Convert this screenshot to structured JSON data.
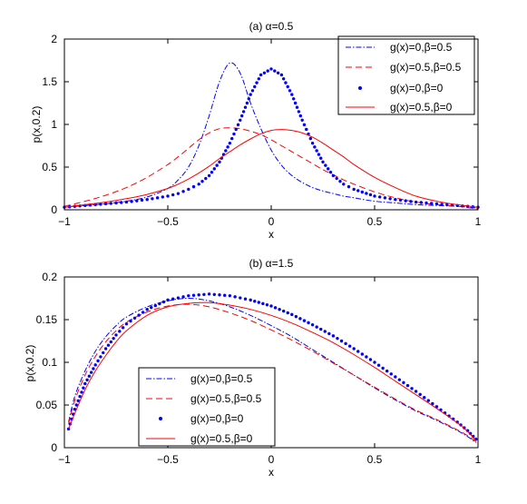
{
  "figure": {
    "background": "#ffffff"
  },
  "chart_data": [
    {
      "type": "line",
      "title": "(a) α=0.5",
      "xlabel": "x",
      "ylabel": "p(x,0.2)",
      "xlim": [
        -1,
        1
      ],
      "ylim": [
        0,
        2
      ],
      "xticks": [
        -1,
        -0.5,
        0,
        0.5,
        1
      ],
      "xtick_labels": [
        "−1",
        "−0.5",
        "0",
        "0.5",
        "1"
      ],
      "yticks": [
        0,
        0.5,
        1,
        1.5,
        2
      ],
      "ytick_labels": [
        "0",
        "0.5",
        "1",
        "1.5",
        "2"
      ],
      "grid": false,
      "legend_position": "top-right",
      "x": [
        -1,
        -0.9,
        -0.8,
        -0.7,
        -0.6,
        -0.5,
        -0.45,
        -0.4,
        -0.35,
        -0.3,
        -0.25,
        -0.2,
        -0.15,
        -0.1,
        -0.05,
        0,
        0.05,
        0.1,
        0.15,
        0.2,
        0.25,
        0.3,
        0.35,
        0.4,
        0.5,
        0.6,
        0.7,
        0.8,
        0.9,
        1
      ],
      "series": [
        {
          "name": "g(x)=0,β=0.5",
          "style": "dashdot",
          "color": "#0000ff",
          "values": [
            0.03,
            0.05,
            0.07,
            0.1,
            0.15,
            0.25,
            0.35,
            0.5,
            0.75,
            1.1,
            1.5,
            1.72,
            1.6,
            1.25,
            0.95,
            0.7,
            0.52,
            0.4,
            0.32,
            0.26,
            0.22,
            0.19,
            0.16,
            0.14,
            0.1,
            0.08,
            0.06,
            0.05,
            0.04,
            0.02
          ]
        },
        {
          "name": "g(x)=0.5,β=0.5",
          "style": "dashed",
          "color": "#ff0000",
          "values": [
            0.04,
            0.1,
            0.17,
            0.26,
            0.38,
            0.53,
            0.62,
            0.72,
            0.82,
            0.9,
            0.95,
            0.96,
            0.95,
            0.92,
            0.88,
            0.82,
            0.75,
            0.68,
            0.61,
            0.54,
            0.47,
            0.41,
            0.35,
            0.3,
            0.21,
            0.14,
            0.09,
            0.06,
            0.04,
            0.01
          ]
        },
        {
          "name": "g(x)=0,β=0",
          "style": "dots",
          "color": "#0000ff",
          "values": [
            0.03,
            0.05,
            0.07,
            0.09,
            0.12,
            0.16,
            0.19,
            0.24,
            0.3,
            0.4,
            0.56,
            0.78,
            1.05,
            1.35,
            1.58,
            1.65,
            1.58,
            1.35,
            1.05,
            0.78,
            0.56,
            0.4,
            0.3,
            0.24,
            0.16,
            0.12,
            0.09,
            0.07,
            0.05,
            0.03
          ]
        },
        {
          "name": "g(x)=0.5,β=0",
          "style": "solid",
          "color": "#ff0000",
          "values": [
            0.03,
            0.06,
            0.09,
            0.13,
            0.18,
            0.25,
            0.3,
            0.36,
            0.43,
            0.51,
            0.6,
            0.68,
            0.76,
            0.83,
            0.89,
            0.93,
            0.94,
            0.93,
            0.9,
            0.85,
            0.78,
            0.7,
            0.62,
            0.53,
            0.38,
            0.26,
            0.16,
            0.1,
            0.06,
            0.03
          ]
        }
      ]
    },
    {
      "type": "line",
      "title": "(b) α=1.5",
      "xlabel": "x",
      "ylabel": "p(x,0.2)",
      "xlim": [
        -1,
        1
      ],
      "ylim": [
        0,
        0.2
      ],
      "xticks": [
        -1,
        -0.5,
        0,
        0.5,
        1
      ],
      "xtick_labels": [
        "−1",
        "−0.5",
        "0",
        "0.5",
        "1"
      ],
      "yticks": [
        0,
        0.05,
        0.1,
        0.15,
        0.2
      ],
      "ytick_labels": [
        "0",
        "0.05",
        "0.1",
        "0.15",
        "0.2"
      ],
      "grid": false,
      "legend_position": "bottom-left",
      "x": [
        -0.98,
        -0.95,
        -0.9,
        -0.85,
        -0.8,
        -0.75,
        -0.7,
        -0.6,
        -0.5,
        -0.4,
        -0.3,
        -0.2,
        -0.1,
        0,
        0.1,
        0.2,
        0.3,
        0.4,
        0.5,
        0.6,
        0.7,
        0.8,
        0.9,
        0.95,
        0.99
      ],
      "series": [
        {
          "name": "g(x)=0,β=0.5",
          "style": "dashdot",
          "color": "#0000ff",
          "values": [
            0.03,
            0.06,
            0.09,
            0.113,
            0.13,
            0.143,
            0.153,
            0.165,
            0.172,
            0.175,
            0.172,
            0.165,
            0.155,
            0.143,
            0.13,
            0.115,
            0.1,
            0.085,
            0.07,
            0.056,
            0.043,
            0.032,
            0.02,
            0.013,
            0.006
          ]
        },
        {
          "name": "g(x)=0.5,β=0.5",
          "style": "dashed",
          "color": "#ff0000",
          "values": [
            0.028,
            0.055,
            0.085,
            0.107,
            0.124,
            0.137,
            0.147,
            0.159,
            0.166,
            0.168,
            0.165,
            0.158,
            0.149,
            0.138,
            0.126,
            0.113,
            0.099,
            0.085,
            0.071,
            0.057,
            0.044,
            0.033,
            0.021,
            0.014,
            0.007
          ]
        },
        {
          "name": "g(x)=0,β=0",
          "style": "dots",
          "color": "#0000ff",
          "values": [
            0.022,
            0.045,
            0.075,
            0.097,
            0.116,
            0.132,
            0.145,
            0.162,
            0.173,
            0.178,
            0.18,
            0.178,
            0.173,
            0.166,
            0.156,
            0.144,
            0.131,
            0.116,
            0.1,
            0.083,
            0.066,
            0.048,
            0.03,
            0.02,
            0.01
          ]
        },
        {
          "name": "g(x)=0.5,β=0",
          "style": "solid",
          "color": "#ff0000",
          "values": [
            0.022,
            0.04,
            0.068,
            0.09,
            0.108,
            0.124,
            0.137,
            0.155,
            0.165,
            0.169,
            0.17,
            0.167,
            0.162,
            0.155,
            0.146,
            0.135,
            0.123,
            0.109,
            0.094,
            0.078,
            0.062,
            0.046,
            0.029,
            0.019,
            0.008
          ]
        }
      ]
    }
  ]
}
